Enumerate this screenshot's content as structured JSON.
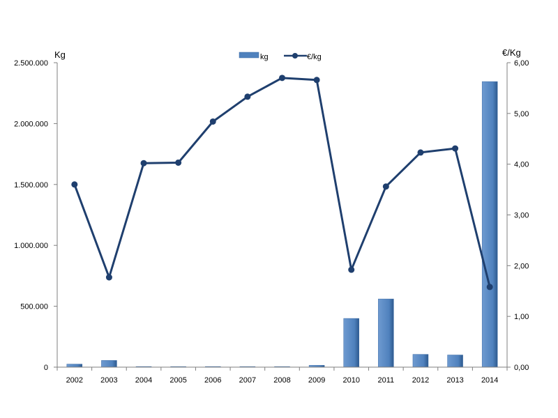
{
  "chart_data": {
    "type": "bar+line",
    "categories": [
      "2002",
      "2003",
      "2004",
      "2005",
      "2006",
      "2007",
      "2008",
      "2009",
      "2010",
      "2011",
      "2012",
      "2013",
      "2014"
    ],
    "series": [
      {
        "name": "kg",
        "type": "bar",
        "axis": "left",
        "color": "#4F81BD",
        "values": [
          25000,
          55000,
          5000,
          2000,
          5000,
          2000,
          2000,
          15000,
          400000,
          560000,
          105000,
          100000,
          2345000
        ]
      },
      {
        "name": "€/kg",
        "type": "line",
        "axis": "right",
        "color": "#1F3F6E",
        "values": [
          3.6,
          1.77,
          4.02,
          4.03,
          4.84,
          5.33,
          5.7,
          5.66,
          1.92,
          3.56,
          4.23,
          4.31,
          1.58
        ]
      }
    ],
    "y_left": {
      "label": "Kg",
      "min": 0,
      "max": 2500000,
      "ticks": [
        "0",
        "500.000",
        "1.000.000",
        "1.500.000",
        "2.000.000",
        "2.500.000"
      ]
    },
    "y_right": {
      "label": "€/Kg",
      "min": 0,
      "max": 6,
      "ticks": [
        "0,00",
        "1,00",
        "2,00",
        "3,00",
        "4,00",
        "5,00",
        "6,00"
      ]
    },
    "legend_position": "top-center",
    "grid": false
  }
}
